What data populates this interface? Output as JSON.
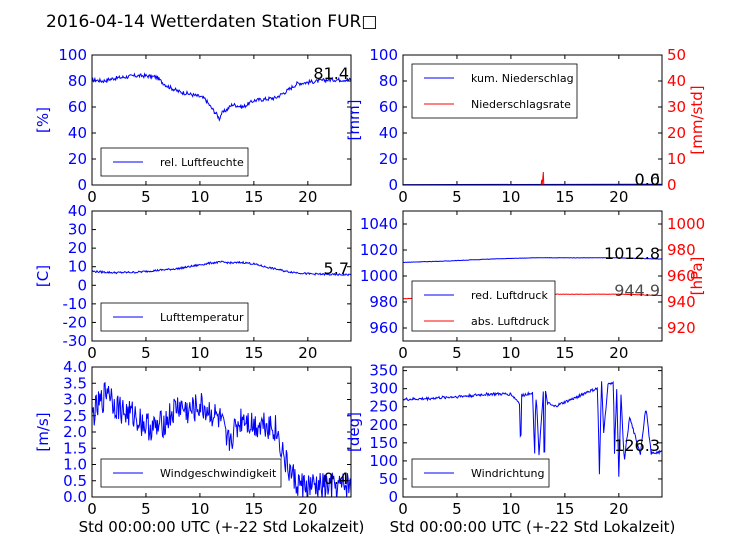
{
  "figure_title": "2016-04-14 Wetterdaten Station FUR□",
  "chart_data": [
    {
      "id": "p1",
      "type": "line",
      "xlim": [
        0,
        24
      ],
      "xticks": [
        0,
        5,
        10,
        15,
        20
      ],
      "ylim": [
        0,
        100
      ],
      "yticks": [
        0,
        20,
        40,
        60,
        80,
        100
      ],
      "ylabel": "[%]",
      "last_value": "81.4",
      "series": [
        {
          "name": "rel. Luftfeuchte",
          "color": "#0000ff",
          "noise": 1.5,
          "x": [
            0,
            1,
            2,
            3,
            4,
            5,
            6,
            6.5,
            7,
            8,
            9,
            10,
            10.5,
            11,
            11.5,
            11.8,
            12,
            12.5,
            13,
            14,
            15,
            16,
            17,
            18,
            19,
            20,
            21,
            22,
            23,
            24
          ],
          "y": [
            81,
            80,
            82,
            83,
            84,
            84,
            83,
            79,
            76,
            72,
            70,
            68,
            66,
            60,
            55,
            51,
            55,
            58,
            62,
            60,
            65,
            66,
            67,
            72,
            78,
            79,
            80,
            81,
            81,
            81
          ]
        }
      ]
    },
    {
      "id": "p2",
      "type": "line",
      "xlim": [
        0,
        24
      ],
      "xticks": [
        0,
        5,
        10,
        15,
        20
      ],
      "ylim": [
        0,
        100
      ],
      "yticks": [
        0,
        20,
        40,
        60,
        80,
        100
      ],
      "ylabel": "[mm]",
      "y2lim": [
        0,
        50
      ],
      "y2ticks": [
        0,
        10,
        20,
        30,
        40,
        50
      ],
      "y2label": "[mm/std]",
      "last_value": "0.0",
      "last_value2": "0.6",
      "series": [
        {
          "name": "kum. Niederschlag",
          "color": "#0000ff",
          "axis": "left",
          "noise": 0,
          "x": [
            0,
            24
          ],
          "y": [
            0.3,
            0.6
          ]
        },
        {
          "name": "Niederschlagsrate",
          "color": "#ff0000",
          "axis": "right",
          "noise": 0,
          "x": [
            0,
            12.8,
            12.85,
            12.9,
            13.0,
            13.05,
            13.1,
            24
          ],
          "y": [
            0,
            0,
            2,
            0,
            5,
            0,
            0,
            0
          ]
        }
      ]
    },
    {
      "id": "p3",
      "type": "line",
      "xlim": [
        0,
        24
      ],
      "xticks": [
        0,
        5,
        10,
        15,
        20
      ],
      "ylim": [
        -30,
        40
      ],
      "yticks": [
        -30,
        -20,
        -10,
        0,
        10,
        20,
        30,
        40
      ],
      "ylabel": "[C]",
      "last_value": "5.7",
      "series": [
        {
          "name": "Lufttemperatur",
          "color": "#0000ff",
          "noise": 0.5,
          "x": [
            0,
            2,
            4,
            6,
            8,
            9,
            10,
            11,
            12,
            13,
            14,
            15,
            16,
            17,
            18,
            19,
            20,
            21,
            22,
            23,
            24
          ],
          "y": [
            7.5,
            6.8,
            7,
            8,
            9,
            10,
            11,
            12,
            12.5,
            12,
            12.3,
            11.5,
            10,
            8.8,
            7.5,
            6.8,
            6.2,
            6,
            5.8,
            5.7,
            5.7
          ]
        }
      ]
    },
    {
      "id": "p4",
      "type": "line",
      "xlim": [
        0,
        24
      ],
      "xticks": [
        0,
        5,
        10,
        15,
        20
      ],
      "ylim": [
        950,
        1050
      ],
      "yticks": [
        960,
        980,
        1000,
        1020,
        1040
      ],
      "ylabel": "",
      "y2lim": [
        910,
        1010
      ],
      "y2ticks": [
        920,
        940,
        960,
        980,
        1000
      ],
      "y2label": "[hPa]",
      "last_value": "1012.8",
      "last_value2": "944.9",
      "series": [
        {
          "name": "red. Luftdruck",
          "color": "#0000ff",
          "axis": "left",
          "noise": 0.15,
          "x": [
            0,
            4,
            8,
            12,
            16,
            20,
            24
          ],
          "y": [
            1010.5,
            1011.5,
            1013,
            1014,
            1014,
            1014,
            1013
          ]
        },
        {
          "name": "abs. Luftdruck",
          "color": "#ff0000",
          "axis": "right",
          "noise": 0.15,
          "x": [
            0,
            4,
            8,
            12,
            16,
            20,
            24
          ],
          "y": [
            942.5,
            943.5,
            945,
            946,
            946,
            946,
            945
          ]
        }
      ]
    },
    {
      "id": "p5",
      "type": "line",
      "xlim": [
        0,
        24
      ],
      "xticks": [
        0,
        5,
        10,
        15,
        20
      ],
      "ylim": [
        0,
        4.0
      ],
      "yticks": [
        0.0,
        0.5,
        1.0,
        1.5,
        2.0,
        2.5,
        3.0,
        3.5,
        4.0
      ],
      "ylabel": "[m/s]",
      "xlabel": "Std 00:00:00 UTC (+-22 Std Lokalzeit)",
      "last_value": "0.4",
      "series": [
        {
          "name": "Windgeschwindigkeit",
          "color": "#0000ff",
          "noise": 0.45,
          "x": [
            0,
            1,
            1.5,
            2,
            3,
            4,
            5,
            6,
            7,
            8,
            9,
            10,
            11,
            12,
            12.5,
            13,
            14,
            15,
            16,
            17,
            17.5,
            18,
            19,
            20,
            21,
            22,
            23,
            24
          ],
          "y": [
            2.5,
            3.0,
            3.4,
            2.9,
            2.6,
            2.5,
            2.2,
            2.1,
            2.4,
            2.8,
            2.6,
            2.8,
            2.6,
            2.3,
            1.6,
            1.9,
            2.5,
            2.2,
            2.3,
            2.1,
            1.6,
            1.0,
            0.4,
            0.3,
            0.3,
            0.3,
            0.3,
            0.4
          ]
        }
      ]
    },
    {
      "id": "p6",
      "type": "line",
      "xlim": [
        0,
        24
      ],
      "xticks": [
        0,
        5,
        10,
        15,
        20
      ],
      "ylim": [
        0,
        360
      ],
      "yticks": [
        0,
        50,
        100,
        150,
        200,
        250,
        300,
        350
      ],
      "ylabel": "[deg]",
      "xlabel": "Std 00:00:00 UTC (+-22 Std Lokalzeit)",
      "last_value": "126.3",
      "series": [
        {
          "name": "Windrichtung",
          "color": "#0000ff",
          "noise": 4,
          "x": [
            0,
            2,
            4,
            6,
            8,
            10,
            10.8,
            10.9,
            11,
            12,
            12.2,
            12.3,
            12.4,
            12.6,
            13,
            13.1,
            13.2,
            13.4,
            14,
            16,
            17,
            18,
            18.1,
            18.2,
            18.4,
            18.6,
            19,
            19.5,
            19.6,
            19.8,
            20,
            20.2,
            20.5,
            21,
            22,
            22.5,
            23,
            24
          ],
          "y": [
            270,
            272,
            276,
            280,
            285,
            285,
            260,
            120,
            280,
            290,
            120,
            285,
            250,
            120,
            290,
            40,
            290,
            260,
            250,
            275,
            290,
            300,
            210,
            60,
            320,
            180,
            310,
            320,
            120,
            300,
            60,
            280,
            100,
            220,
            120,
            250,
            120,
            126
          ]
        }
      ]
    }
  ]
}
